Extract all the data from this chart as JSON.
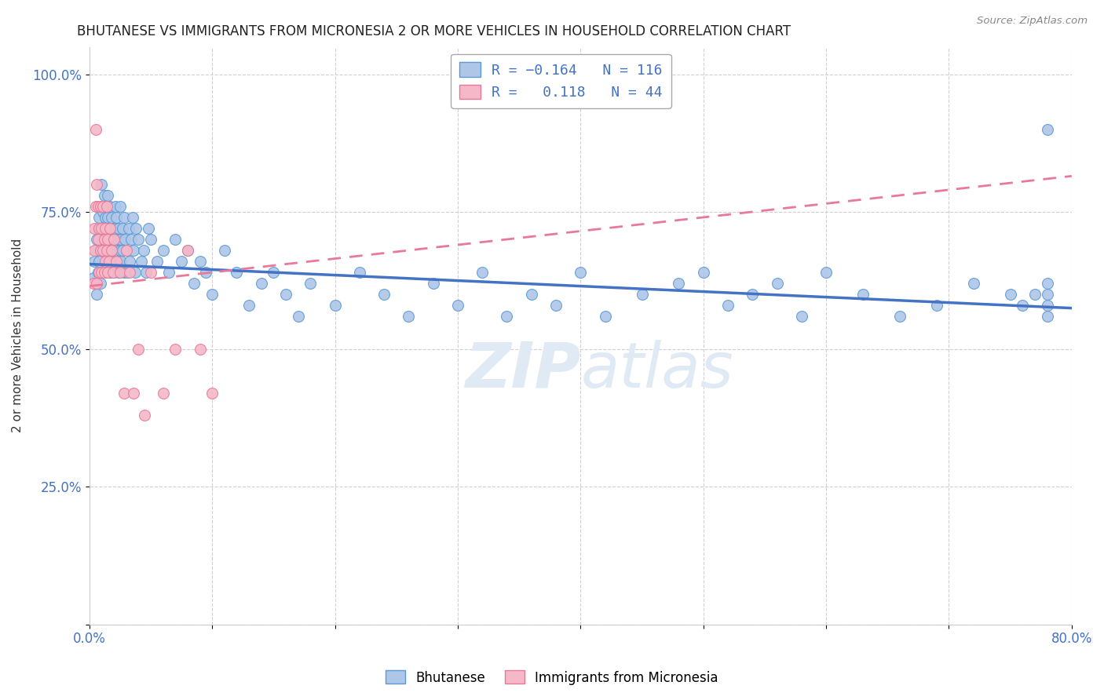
{
  "title": "BHUTANESE VS IMMIGRANTS FROM MICRONESIA 2 OR MORE VEHICLES IN HOUSEHOLD CORRELATION CHART",
  "source": "Source: ZipAtlas.com",
  "ylabel": "2 or more Vehicles in Household",
  "xlim": [
    0.0,
    0.8
  ],
  "ylim": [
    0.0,
    1.05
  ],
  "xticks": [
    0.0,
    0.1,
    0.2,
    0.3,
    0.4,
    0.5,
    0.6,
    0.7,
    0.8
  ],
  "xticklabels": [
    "0.0%",
    "",
    "",
    "",
    "",
    "",
    "",
    "",
    "80.0%"
  ],
  "yticks": [
    0.0,
    0.25,
    0.5,
    0.75,
    1.0
  ],
  "yticklabels": [
    "",
    "25.0%",
    "50.0%",
    "75.0%",
    "100.0%"
  ],
  "blue_R": -0.164,
  "blue_N": 116,
  "pink_R": 0.118,
  "pink_N": 44,
  "blue_color": "#aec6e8",
  "pink_color": "#f5b8c8",
  "blue_edge_color": "#5b9bd5",
  "pink_edge_color": "#e8799a",
  "blue_line_color": "#4472c4",
  "pink_line_color": "#c0504d",
  "watermark_color": "#e0eaf4",
  "legend_label_blue": "Bhutanese",
  "legend_label_pink": "Immigrants from Micronesia",
  "blue_trend_x0": 0.0,
  "blue_trend_x1": 0.8,
  "blue_trend_y0": 0.655,
  "blue_trend_y1": 0.575,
  "pink_trend_x0": 0.0,
  "pink_trend_x1": 0.8,
  "pink_trend_y0": 0.615,
  "pink_trend_y1": 0.815,
  "blue_scatter_x": [
    0.003,
    0.004,
    0.005,
    0.006,
    0.006,
    0.007,
    0.007,
    0.008,
    0.008,
    0.009,
    0.01,
    0.01,
    0.01,
    0.011,
    0.011,
    0.012,
    0.012,
    0.013,
    0.013,
    0.014,
    0.014,
    0.015,
    0.015,
    0.015,
    0.016,
    0.016,
    0.017,
    0.017,
    0.018,
    0.018,
    0.019,
    0.019,
    0.02,
    0.02,
    0.021,
    0.021,
    0.022,
    0.022,
    0.023,
    0.023,
    0.024,
    0.024,
    0.025,
    0.025,
    0.026,
    0.026,
    0.027,
    0.027,
    0.028,
    0.028,
    0.029,
    0.03,
    0.031,
    0.032,
    0.033,
    0.034,
    0.035,
    0.036,
    0.037,
    0.038,
    0.04,
    0.042,
    0.044,
    0.046,
    0.048,
    0.05,
    0.055,
    0.06,
    0.065,
    0.07,
    0.075,
    0.08,
    0.085,
    0.09,
    0.095,
    0.1,
    0.11,
    0.12,
    0.13,
    0.14,
    0.15,
    0.16,
    0.17,
    0.18,
    0.2,
    0.22,
    0.24,
    0.26,
    0.28,
    0.3,
    0.32,
    0.34,
    0.36,
    0.38,
    0.4,
    0.42,
    0.45,
    0.48,
    0.5,
    0.52,
    0.54,
    0.56,
    0.58,
    0.6,
    0.63,
    0.66,
    0.69,
    0.72,
    0.75,
    0.76,
    0.77,
    0.78,
    0.78,
    0.78,
    0.78,
    0.78
  ],
  "blue_scatter_y": [
    0.63,
    0.66,
    0.68,
    0.6,
    0.7,
    0.64,
    0.72,
    0.66,
    0.74,
    0.62,
    0.68,
    0.76,
    0.8,
    0.7,
    0.75,
    0.72,
    0.78,
    0.68,
    0.74,
    0.64,
    0.7,
    0.66,
    0.74,
    0.78,
    0.68,
    0.72,
    0.64,
    0.76,
    0.68,
    0.74,
    0.66,
    0.72,
    0.64,
    0.7,
    0.72,
    0.76,
    0.68,
    0.74,
    0.7,
    0.66,
    0.64,
    0.72,
    0.68,
    0.76,
    0.7,
    0.66,
    0.72,
    0.68,
    0.64,
    0.74,
    0.7,
    0.68,
    0.64,
    0.72,
    0.66,
    0.7,
    0.74,
    0.68,
    0.64,
    0.72,
    0.7,
    0.66,
    0.68,
    0.64,
    0.72,
    0.7,
    0.66,
    0.68,
    0.64,
    0.7,
    0.66,
    0.68,
    0.62,
    0.66,
    0.64,
    0.6,
    0.68,
    0.64,
    0.58,
    0.62,
    0.64,
    0.6,
    0.56,
    0.62,
    0.58,
    0.64,
    0.6,
    0.56,
    0.62,
    0.58,
    0.64,
    0.56,
    0.6,
    0.58,
    0.64,
    0.56,
    0.6,
    0.62,
    0.64,
    0.58,
    0.6,
    0.62,
    0.56,
    0.64,
    0.6,
    0.56,
    0.58,
    0.62,
    0.6,
    0.58,
    0.6,
    0.62,
    0.56,
    0.9,
    0.6,
    0.58
  ],
  "pink_scatter_x": [
    0.003,
    0.004,
    0.004,
    0.005,
    0.005,
    0.006,
    0.006,
    0.007,
    0.007,
    0.008,
    0.008,
    0.009,
    0.009,
    0.01,
    0.01,
    0.011,
    0.011,
    0.012,
    0.012,
    0.013,
    0.013,
    0.014,
    0.014,
    0.015,
    0.015,
    0.016,
    0.017,
    0.018,
    0.019,
    0.02,
    0.022,
    0.025,
    0.028,
    0.03,
    0.033,
    0.036,
    0.04,
    0.045,
    0.05,
    0.06,
    0.07,
    0.08,
    0.09,
    0.1
  ],
  "pink_scatter_y": [
    0.62,
    0.68,
    0.72,
    0.9,
    0.76,
    0.62,
    0.8,
    0.7,
    0.76,
    0.64,
    0.72,
    0.68,
    0.76,
    0.64,
    0.72,
    0.68,
    0.76,
    0.64,
    0.7,
    0.66,
    0.72,
    0.68,
    0.76,
    0.64,
    0.7,
    0.66,
    0.72,
    0.68,
    0.64,
    0.7,
    0.66,
    0.64,
    0.42,
    0.68,
    0.64,
    0.42,
    0.5,
    0.38,
    0.64,
    0.42,
    0.5,
    0.68,
    0.5,
    0.42
  ]
}
